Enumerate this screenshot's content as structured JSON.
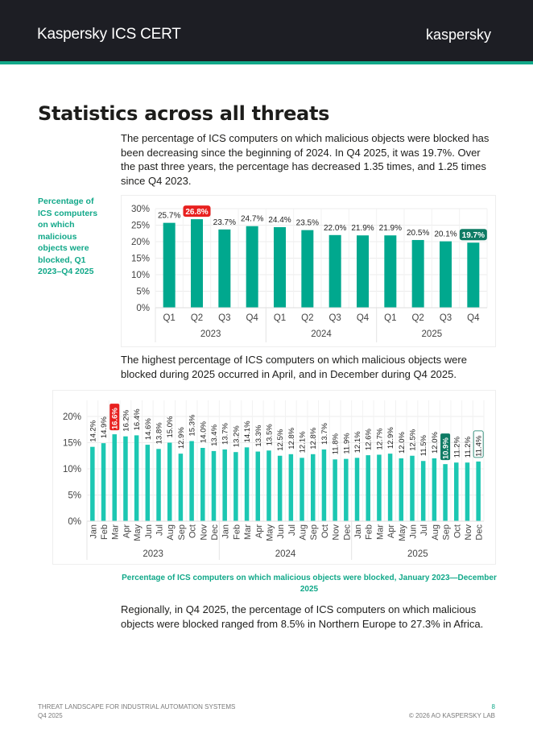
{
  "header": {
    "title": "Kaspersky ICS CERT",
    "logo": "kaspersky"
  },
  "colors": {
    "header_bg": "#1d1e24",
    "accent": "#11a889",
    "bar_quarterly": "#00a88e",
    "bar_monthly": "#1cc7b2",
    "highlight_max": "#e8201f",
    "highlight_min": "#0e7b64"
  },
  "title": "Statistics across all threats",
  "paragraphs": [
    "The percentage of ICS computers on which malicious objects were blocked has been decreasing since the beginning of 2024. In Q4 2025, it was 19.7%. Over the past three years, the percentage has decreased 1.35 times, and 1.25 times since Q4 2023.",
    "The highest percentage of ICS computers on which malicious objects were blocked during 2025 occurred in April, and in December during Q4 2025.",
    "Regionally, in Q4 2025, the percentage of ICS computers on which malicious objects were blocked ranged from 8.5% in Northern Europe to 27.3% in Africa."
  ],
  "side_caption": "Percentage of ICS computers on which malicious objects were blocked, Q1 2023–Q4 2025",
  "chart_data": [
    {
      "type": "bar",
      "categories": [
        "Q1",
        "Q2",
        "Q3",
        "Q4",
        "Q1",
        "Q2",
        "Q3",
        "Q4",
        "Q1",
        "Q2",
        "Q3",
        "Q4"
      ],
      "groups": [
        "2023",
        "2024",
        "2025"
      ],
      "values": [
        25.7,
        26.8,
        23.7,
        24.7,
        24.4,
        23.5,
        22.0,
        21.9,
        21.9,
        20.5,
        20.1,
        19.7
      ],
      "labels": [
        "25.7%",
        "26.8%",
        "23.7%",
        "24.7%",
        "24.4%",
        "23.5%",
        "22.0%",
        "21.9%",
        "21.9%",
        "20.5%",
        "20.1%",
        "19.7%"
      ],
      "yticks": [
        "0%",
        "5%",
        "10%",
        "15%",
        "20%",
        "25%",
        "30%"
      ],
      "ylim": [
        0,
        30
      ],
      "grid": true,
      "highlight": {
        "max_index": 1,
        "last_index": 11
      }
    },
    {
      "type": "bar",
      "title": "Percentage of ICS computers on which malicious objects were blocked, January 2023—December 2025",
      "categories": [
        "Jan",
        "Feb",
        "Mar",
        "Apr",
        "May",
        "Jun",
        "Jul",
        "Aug",
        "Sep",
        "Oct",
        "Nov",
        "Dec",
        "Jan",
        "Feb",
        "Mar",
        "Apr",
        "May",
        "Jun",
        "Jul",
        "Aug",
        "Sep",
        "Oct",
        "Nov",
        "Dec",
        "Jan",
        "Feb",
        "Mar",
        "Apr",
        "May",
        "Jun",
        "Jul",
        "Aug",
        "Sep",
        "Oct",
        "Nov",
        "Dec"
      ],
      "groups": [
        "2023",
        "2024",
        "2025"
      ],
      "values": [
        14.2,
        14.9,
        16.6,
        16.2,
        16.4,
        14.6,
        13.8,
        15.0,
        12.9,
        15.3,
        14.0,
        13.4,
        13.7,
        13.2,
        14.1,
        13.3,
        13.5,
        12.5,
        12.8,
        12.1,
        12.8,
        13.7,
        11.8,
        11.9,
        12.1,
        12.6,
        12.7,
        12.9,
        12.0,
        12.5,
        11.5,
        12.0,
        10.9,
        11.2,
        11.2,
        11.4
      ],
      "labels": [
        "14.2%",
        "14.9%",
        "16.6%",
        "16.2%",
        "16.4%",
        "14.6%",
        "13.8%",
        "15.0%",
        "12.9%",
        "15.3%",
        "14.0%",
        "13.4%",
        "13.7%",
        "13.2%",
        "14.1%",
        "13.3%",
        "13.5%",
        "12.5%",
        "12.8%",
        "12.1%",
        "12.8%",
        "13.7%",
        "11.8%",
        "11.9%",
        "12.1%",
        "12.6%",
        "12.7%",
        "12.9%",
        "12.0%",
        "12.5%",
        "11.5%",
        "12.0%",
        "10.9%",
        "11.2%",
        "11.2%",
        "11.4%"
      ],
      "yticks": [
        "0%",
        "5%",
        "10%",
        "15%",
        "20%"
      ],
      "ylim": [
        0,
        20
      ],
      "grid": true,
      "highlight": {
        "max_index": 2,
        "min_index": 32,
        "last_index": 35
      }
    }
  ],
  "footer": {
    "left_line1": "THREAT LANDSCAPE FOR INDUSTRIAL AUTOMATION SYSTEMS",
    "left_line2": "Q4 2025",
    "page": "8",
    "copyright": "© 2026 AO KASPERSKY LAB"
  }
}
